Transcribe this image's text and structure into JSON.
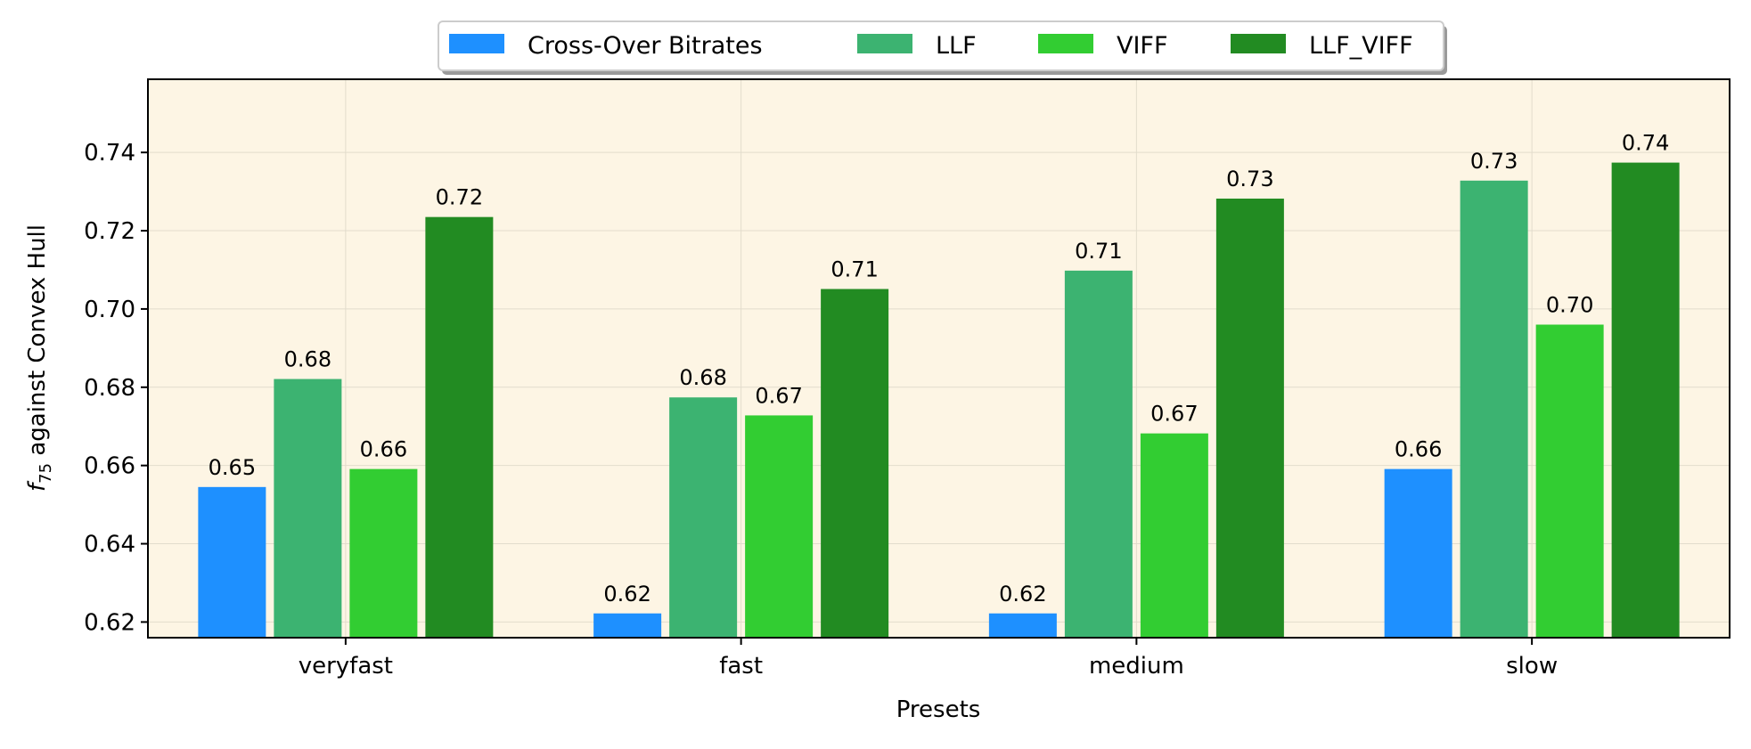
{
  "chart_data": {
    "type": "bar",
    "title": "",
    "xlabel": "Presets",
    "ylabel_prefix": "f",
    "ylabel_sub": "75",
    "ylabel_suffix": " against Convex Hull",
    "categories": [
      "veryfast",
      "fast",
      "medium",
      "slow"
    ],
    "series": [
      {
        "name": "Cross-Over Bitrates",
        "color": "#1e90ff",
        "values": [
          0.6545,
          0.6222,
          0.6222,
          0.6591
        ]
      },
      {
        "name": "LLF",
        "color": "#3cb371",
        "values": [
          0.6821,
          0.6774,
          0.7098,
          0.7328
        ]
      },
      {
        "name": "VIFF",
        "color": "#32cd32",
        "values": [
          0.6591,
          0.6728,
          0.6682,
          0.696
        ]
      },
      {
        "name": "LLF_VIFF",
        "color": "#228b22",
        "values": [
          0.7235,
          0.7051,
          0.7282,
          0.7374
        ]
      }
    ],
    "bar_labels": [
      [
        "0.65",
        "0.62",
        "0.62",
        "0.66"
      ],
      [
        "0.68",
        "0.68",
        "0.71",
        "0.73"
      ],
      [
        "0.66",
        "0.67",
        "0.67",
        "0.70"
      ],
      [
        "0.72",
        "0.71",
        "0.73",
        "0.74"
      ]
    ],
    "yticks": [
      "0.62",
      "0.64",
      "0.66",
      "0.68",
      "0.70",
      "0.72",
      "0.74"
    ],
    "ylim": [
      0.616,
      0.7587
    ],
    "grid": true,
    "legend_position": "top-center",
    "plot_background": "#fdf5e4"
  }
}
